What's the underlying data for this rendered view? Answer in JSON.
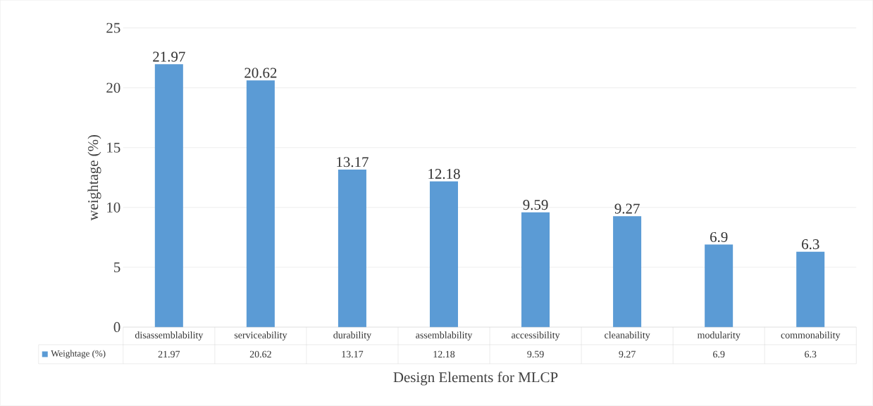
{
  "chart_data": {
    "type": "bar",
    "xlabel": "Design Elements for MLCP",
    "ylabel": "weightage (%)",
    "categories": [
      "disassemblability",
      "serviceability",
      "durability",
      "assemblability",
      "accessibility",
      "cleanability",
      "modularity",
      "commonability"
    ],
    "series": [
      {
        "name": "Weightage (%)",
        "color": "#5b9bd5",
        "values": [
          21.97,
          20.62,
          13.17,
          12.18,
          9.59,
          9.27,
          6.9,
          6.3
        ],
        "value_labels": [
          "21.97",
          "20.62",
          "13.17",
          "12.18",
          "9.59",
          "9.27",
          "6.9",
          "6.3"
        ]
      }
    ],
    "ylim": [
      0,
      25
    ],
    "yticks": [
      0,
      5,
      10,
      15,
      20,
      25
    ],
    "grid": "y",
    "legend": "bottom",
    "data_labels": true
  }
}
